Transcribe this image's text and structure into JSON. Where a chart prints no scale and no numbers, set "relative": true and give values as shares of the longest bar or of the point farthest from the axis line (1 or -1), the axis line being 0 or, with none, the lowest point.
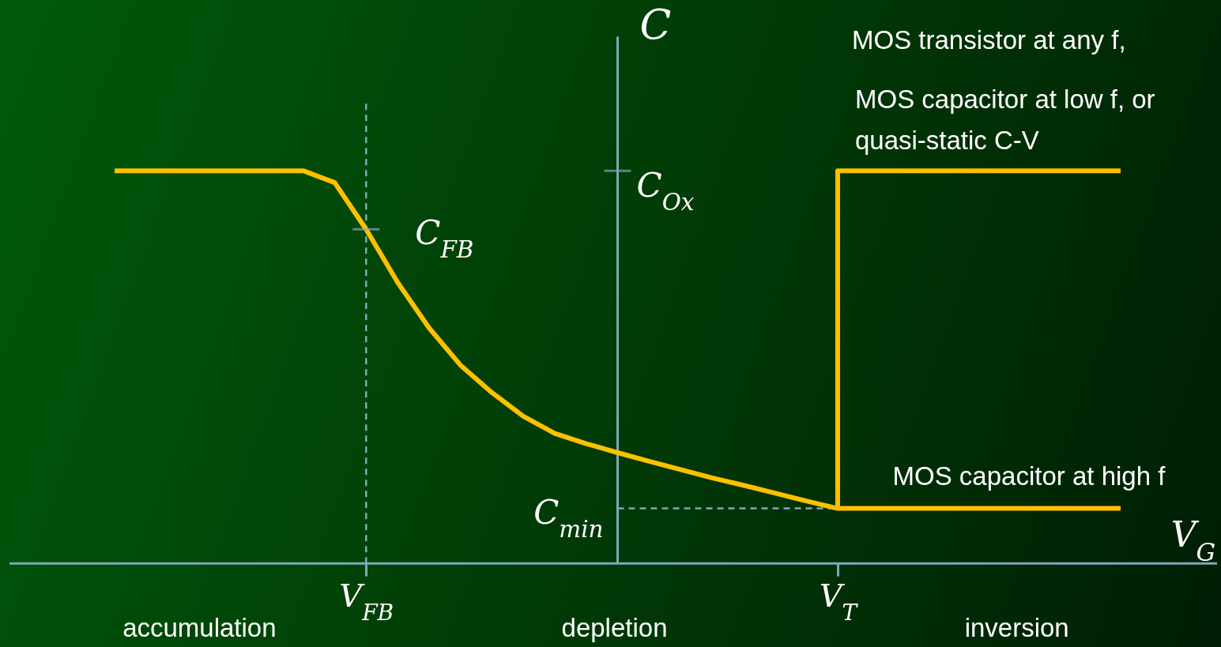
{
  "chart_data": {
    "type": "line",
    "relative": true,
    "xlabel": "V$_{G}$",
    "ylabel": "C",
    "categories": [
      null,
      null,
      null,
      null,
      null,
      null,
      null,
      null,
      "V$_{FB}$",
      null,
      null,
      null,
      null,
      null,
      null,
      null,
      null,
      null,
      null,
      null,
      null,
      null,
      null,
      "V$_{T}$",
      null,
      null,
      null,
      null,
      null,
      null,
      null,
      null,
      null
    ],
    "series": [
      {
        "name": "MOS capacitor at high f",
        "color": "#ffc000",
        "values": [
          1,
          1,
          1,
          1,
          1,
          1,
          1,
          0.97,
          0.851,
          0.716,
          0.6,
          0.505,
          0.435,
          0.375,
          0.331,
          0.305,
          0.282,
          0.26,
          0.239,
          0.218,
          0.199,
          0.179,
          0.159,
          0.14,
          0.14,
          0.14,
          0.14,
          0.14,
          0.14,
          0.14,
          0.14,
          0.14,
          0.14
        ]
      },
      {
        "type": "step",
        "name": "MOS capacitor at low f, or quasi-static C-V",
        "color": "#ffc000",
        "values": [
          null,
          null,
          null,
          null,
          null,
          null,
          null,
          null,
          null,
          null,
          null,
          null,
          null,
          null,
          null,
          null,
          null,
          null,
          null,
          null,
          null,
          null,
          null,
          0.14,
          1,
          1,
          1,
          1,
          1,
          1,
          1,
          1,
          1
        ]
      }
    ],
    "ref_lines": [
      {
        "axis": "x",
        "value": "V$_{FB}$",
        "line_style": "dashed",
        "color": "#7fa7b8"
      },
      {
        "axis": "y",
        "value": 0.14,
        "line_style": "dashed",
        "color": "#7fa7b8"
      }
    ],
    "annotations": [
      "MOS transistor at any f,",
      "C$_{Ox}$",
      "C$_{min}$",
      "accumulation",
      "depletion",
      "inversion",
      {
        "text": "C$_{FB}$",
        "x": "V$_{FB}$",
        "y": 0.851
      }
    ]
  }
}
